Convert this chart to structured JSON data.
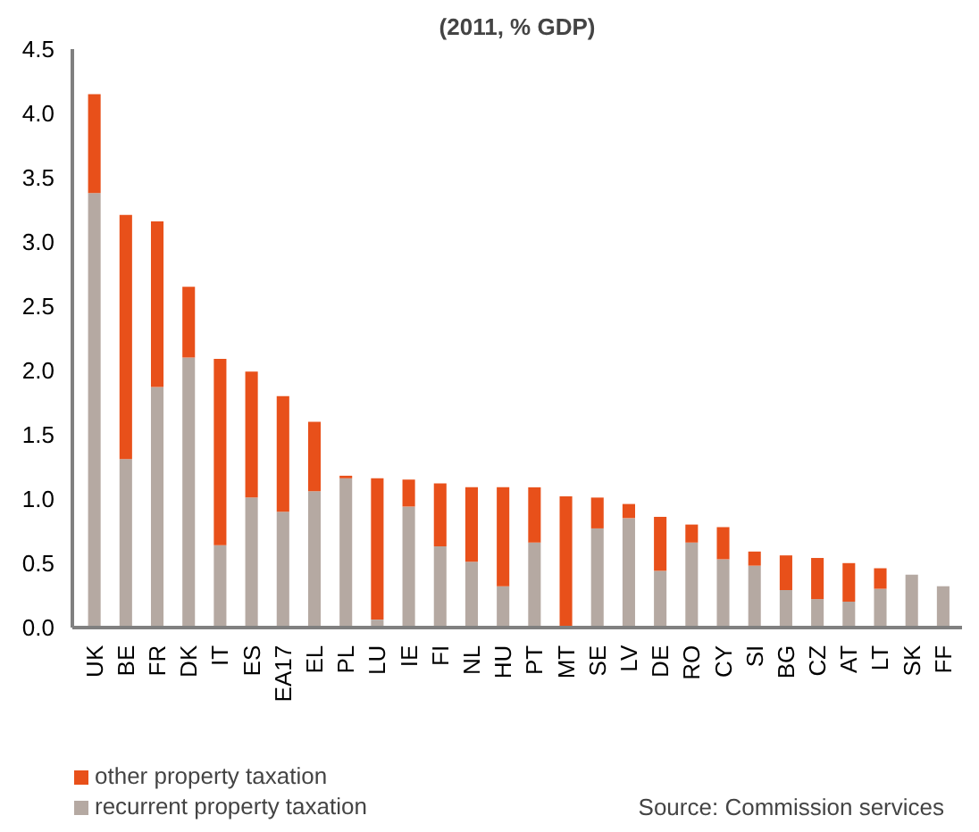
{
  "chart_data": {
    "type": "bar",
    "stacked": true,
    "title": "(2011, % GDP)",
    "categories": [
      "UK",
      "BE",
      "FR",
      "DK",
      "IT",
      "ES",
      "EA17",
      "EL",
      "PL",
      "LU",
      "IE",
      "FI",
      "NL",
      "HU",
      "PT",
      "MT",
      "SE",
      "LV",
      "DE",
      "RO",
      "CY",
      "SI",
      "BG",
      "CZ",
      "AT",
      "LT",
      "SK",
      "FF"
    ],
    "series": [
      {
        "name": "recurrent property taxation",
        "color": "#b5a9a2",
        "values": [
          3.38,
          1.31,
          1.87,
          2.1,
          0.64,
          1.01,
          0.9,
          1.06,
          1.16,
          0.06,
          0.94,
          0.63,
          0.51,
          0.32,
          0.66,
          null,
          0.77,
          0.85,
          0.44,
          0.66,
          0.53,
          0.48,
          0.29,
          0.22,
          0.2,
          0.3,
          0.41,
          0.32
        ]
      },
      {
        "name": "other property taxation",
        "color": "#e8501a",
        "values": [
          0.77,
          1.9,
          1.29,
          0.55,
          1.45,
          0.98,
          0.9,
          0.54,
          0.02,
          1.1,
          0.21,
          0.49,
          0.58,
          0.77,
          0.43,
          1.02,
          0.24,
          0.11,
          0.42,
          0.14,
          0.25,
          0.11,
          0.27,
          0.32,
          0.3,
          0.16,
          0.0,
          0.0
        ]
      }
    ],
    "ylim": [
      0,
      4.5
    ],
    "yticks": [
      {
        "value": 0,
        "label": "0.0"
      },
      {
        "value": 0.5,
        "label": "0.5"
      },
      {
        "value": 1,
        "label": "1.0"
      },
      {
        "value": 1.5,
        "label": "1.5"
      },
      {
        "value": 2,
        "label": "2.0"
      },
      {
        "value": 2.5,
        "label": "2.5"
      },
      {
        "value": 3,
        "label": "3.0"
      },
      {
        "value": 3.5,
        "label": "3.5"
      },
      {
        "value": 4,
        "label": "4.0"
      },
      {
        "value": 4.5,
        "label": "4.5"
      }
    ],
    "legend": "bottom left",
    "grid": false,
    "annotations": [
      "Source: Commission services"
    ]
  }
}
